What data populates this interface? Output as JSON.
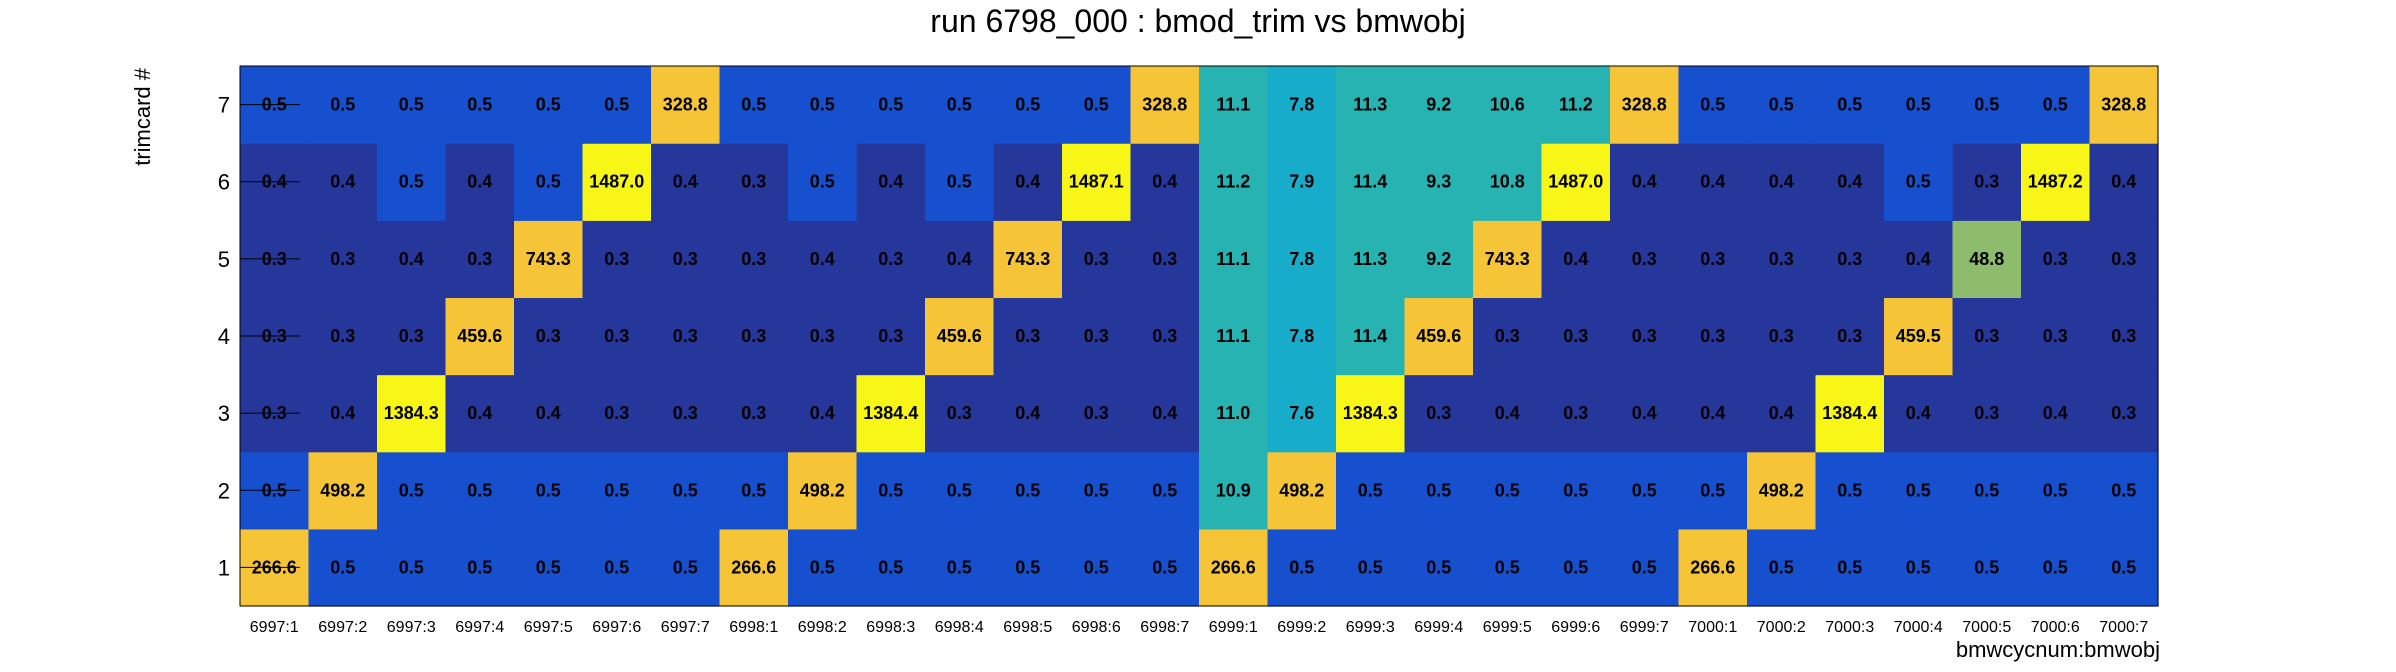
{
  "chart_data": {
    "type": "heatmap",
    "title": "run 6798_000 : bmod_trim vs bmwobj",
    "xlabel": "bmwcycnum:bmwobj",
    "ylabel": "trimcard #",
    "x_categories": [
      "6997:1",
      "6997:2",
      "6997:3",
      "6997:4",
      "6997:5",
      "6997:6",
      "6997:7",
      "6998:1",
      "6998:2",
      "6998:3",
      "6998:4",
      "6998:5",
      "6998:6",
      "6998:7",
      "6999:1",
      "6999:2",
      "6999:3",
      "6999:4",
      "6999:5",
      "6999:6",
      "6999:7",
      "7000:1",
      "7000:2",
      "7000:3",
      "7000:4",
      "7000:5",
      "7000:6",
      "7000:7"
    ],
    "y_categories": [
      "1",
      "2",
      "3",
      "4",
      "5",
      "6",
      "7"
    ],
    "z_labels": [
      [
        "266.6",
        "0.5",
        "0.5",
        "0.5",
        "0.5",
        "0.5",
        "0.5",
        "266.6",
        "0.5",
        "0.5",
        "0.5",
        "0.5",
        "0.5",
        "0.5",
        "266.6",
        "0.5",
        "0.5",
        "0.5",
        "0.5",
        "0.5",
        "0.5",
        "266.6",
        "0.5",
        "0.5",
        "0.5",
        "0.5",
        "0.5",
        "0.5"
      ],
      [
        "0.5",
        "498.2",
        "0.5",
        "0.5",
        "0.5",
        "0.5",
        "0.5",
        "0.5",
        "498.2",
        "0.5",
        "0.5",
        "0.5",
        "0.5",
        "0.5",
        "10.9",
        "498.2",
        "0.5",
        "0.5",
        "0.5",
        "0.5",
        "0.5",
        "0.5",
        "498.2",
        "0.5",
        "0.5",
        "0.5",
        "0.5",
        "0.5"
      ],
      [
        "0.3",
        "0.4",
        "1384.3",
        "0.4",
        "0.4",
        "0.3",
        "0.3",
        "0.3",
        "0.4",
        "1384.4",
        "0.3",
        "0.4",
        "0.3",
        "0.4",
        "11.0",
        "7.6",
        "1384.3",
        "0.3",
        "0.4",
        "0.3",
        "0.4",
        "0.4",
        "0.4",
        "1384.4",
        "0.4",
        "0.3",
        "0.4",
        "0.3"
      ],
      [
        "0.3",
        "0.3",
        "0.3",
        "459.6",
        "0.3",
        "0.3",
        "0.3",
        "0.3",
        "0.3",
        "0.3",
        "459.6",
        "0.3",
        "0.3",
        "0.3",
        "11.1",
        "7.8",
        "11.4",
        "459.6",
        "0.3",
        "0.3",
        "0.3",
        "0.3",
        "0.3",
        "0.3",
        "459.5",
        "0.3",
        "0.3",
        "0.3"
      ],
      [
        "0.3",
        "0.3",
        "0.4",
        "0.3",
        "743.3",
        "0.3",
        "0.3",
        "0.3",
        "0.4",
        "0.3",
        "0.4",
        "743.3",
        "0.3",
        "0.3",
        "11.1",
        "7.8",
        "11.3",
        "9.2",
        "743.3",
        "0.4",
        "0.3",
        "0.3",
        "0.3",
        "0.3",
        "0.4",
        "48.8",
        "0.3",
        "0.3"
      ],
      [
        "0.4",
        "0.4",
        "0.5",
        "0.4",
        "0.5",
        "1487.0",
        "0.4",
        "0.3",
        "0.5",
        "0.4",
        "0.5",
        "0.4",
        "1487.1",
        "0.4",
        "11.2",
        "7.9",
        "11.4",
        "9.3",
        "10.8",
        "1487.0",
        "0.4",
        "0.4",
        "0.4",
        "0.4",
        "0.5",
        "0.3",
        "1487.2",
        "0.4"
      ],
      [
        "0.5",
        "0.5",
        "0.5",
        "0.5",
        "0.5",
        "0.5",
        "328.8",
        "0.5",
        "0.5",
        "0.5",
        "0.5",
        "0.5",
        "0.5",
        "328.8",
        "11.1",
        "7.8",
        "11.3",
        "9.2",
        "10.6",
        "11.2",
        "328.8",
        "0.5",
        "0.5",
        "0.5",
        "0.5",
        "0.5",
        "0.5",
        "328.8"
      ]
    ],
    "color_palette": {
      "very_low": "#25379b",
      "low": "#1650cf",
      "mid_low": "#23a4c7",
      "mid": "#16acca",
      "mid_high": "#27b3b1",
      "mid_green": "#8cbc6c",
      "high": "#f6c537",
      "highest": "#f8f617"
    },
    "grid": false
  }
}
